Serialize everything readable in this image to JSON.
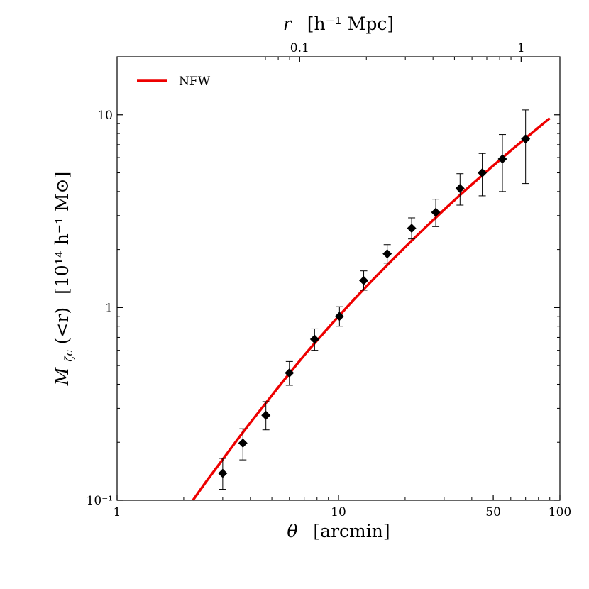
{
  "chart_data": {
    "type": "scatter",
    "title": "",
    "xlabel_symbol": "θ",
    "xlabel_unit": "[arcmin]",
    "ylabel_symbol": "M",
    "ylabel_sub": "ζc",
    "ylabel_arg": "(<r)",
    "ylabel_unit": "[10¹⁴ h⁻¹ M⊙]",
    "top_xlabel_symbol": "r",
    "top_xlabel_unit": "[h⁻¹ Mpc]",
    "x_scale": "log",
    "y_scale": "log",
    "xlim": [
      1,
      100
    ],
    "ylim": [
      0.1,
      20
    ],
    "x_ticks": [
      {
        "value": 1,
        "label": "1"
      },
      {
        "value": 10,
        "label": "10"
      },
      {
        "value": 50,
        "label": "50"
      },
      {
        "value": 100,
        "label": "100"
      }
    ],
    "y_ticks": [
      {
        "value": 0.1,
        "label": "10⁻¹"
      },
      {
        "value": 1,
        "label": "1"
      },
      {
        "value": 10,
        "label": "10"
      }
    ],
    "top_x_ticks": [
      {
        "theta": 6.68,
        "label": "0.1"
      },
      {
        "theta": 66.8,
        "label": "1"
      }
    ],
    "legend": {
      "position": "top-left",
      "entries": [
        {
          "label": "NFW",
          "color": "#ee0000"
        }
      ]
    },
    "series": [
      {
        "name": "NFW",
        "kind": "line",
        "color": "#ee0000",
        "x": [
          2.2,
          2.5,
          3.0,
          3.5,
          4.0,
          5.0,
          6.0,
          7.0,
          8.0,
          10.0,
          12.0,
          14.0,
          17.0,
          20.0,
          25.0,
          30.0,
          35.0,
          40.0,
          50.0,
          60.0,
          70.0,
          80.0,
          90.0
        ],
        "y": [
          0.1,
          0.123,
          0.163,
          0.207,
          0.253,
          0.35,
          0.455,
          0.565,
          0.675,
          0.9,
          1.13,
          1.36,
          1.71,
          2.06,
          2.64,
          3.22,
          3.79,
          4.35,
          5.45,
          6.52,
          7.56,
          8.58,
          9.6
        ]
      },
      {
        "name": "data",
        "kind": "points",
        "color": "#000000",
        "x": [
          3.0,
          3.7,
          4.7,
          6.0,
          7.8,
          10.1,
          13.0,
          16.6,
          21.4,
          27.5,
          35.4,
          44.6,
          55.0,
          70.0
        ],
        "y": [
          0.138,
          0.198,
          0.276,
          0.458,
          0.685,
          0.9,
          1.38,
          1.9,
          2.58,
          3.12,
          4.15,
          5.0,
          5.9,
          7.5
        ],
        "yerr_low": [
          0.114,
          0.162,
          0.232,
          0.395,
          0.6,
          0.8,
          1.23,
          1.7,
          2.27,
          2.63,
          3.4,
          3.8,
          4.0,
          4.4
        ],
        "yerr_high": [
          0.165,
          0.235,
          0.325,
          0.525,
          0.775,
          1.01,
          1.55,
          2.12,
          2.92,
          3.65,
          4.95,
          6.3,
          7.9,
          10.6
        ]
      }
    ]
  }
}
